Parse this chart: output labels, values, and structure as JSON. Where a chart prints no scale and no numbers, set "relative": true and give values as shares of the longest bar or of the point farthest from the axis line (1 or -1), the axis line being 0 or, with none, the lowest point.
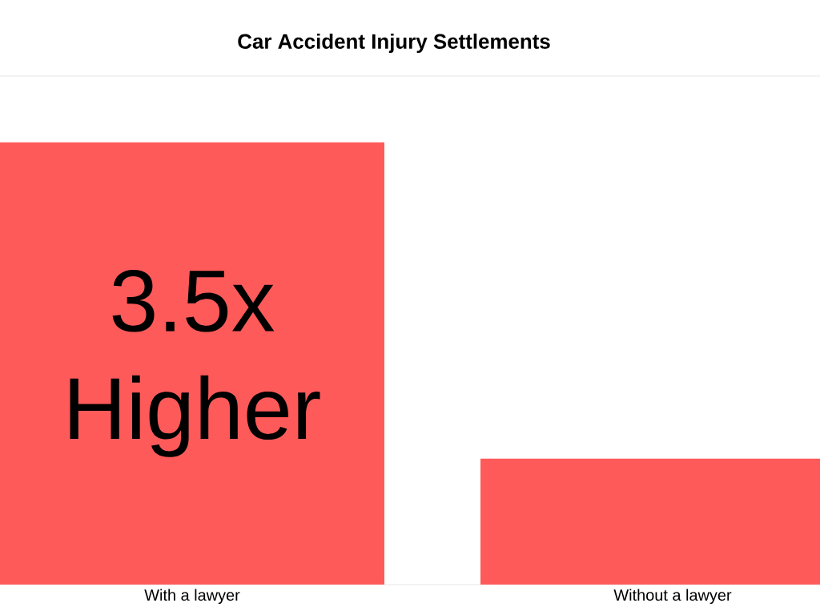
{
  "chart_data": {
    "type": "bar",
    "title": "Car Accident Injury Settlements",
    "relative": true,
    "categories": [
      "With a lawyer",
      "Without a lawyer"
    ],
    "values": [
      1,
      0.285
    ],
    "color": "#ff5a5a",
    "annotations": [
      "3.5x Higher"
    ]
  }
}
